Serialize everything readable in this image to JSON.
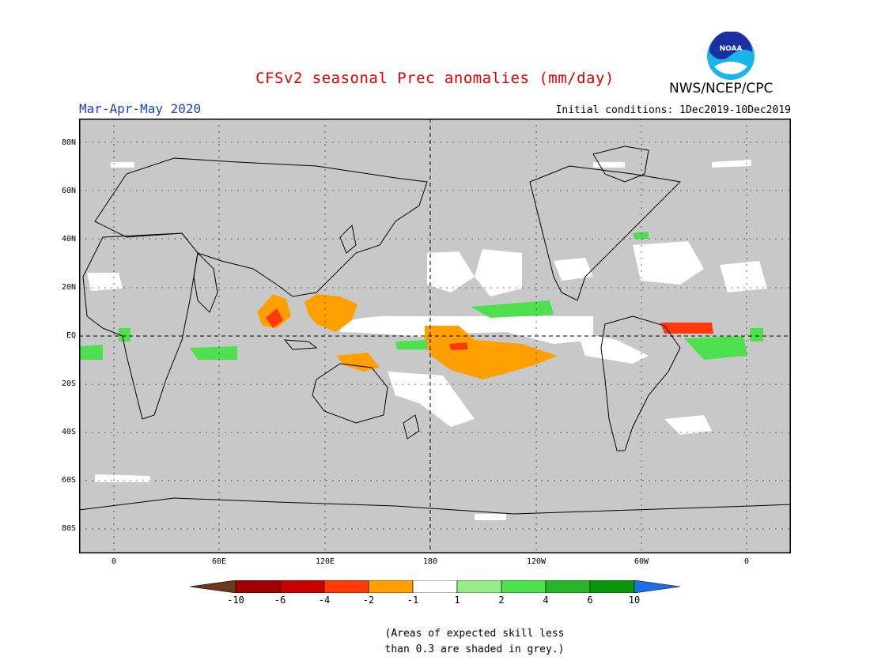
{
  "title": "CFSv2 seasonal Prec anomalies (mm/day)",
  "season": "Mar-Apr-May 2020",
  "initial_conditions": "Initial conditions: 1Dec2019-10Dec2019",
  "agency": "NWS/NCEP/CPC",
  "logo_text": "NOAA",
  "lat_labels": [
    "80N",
    "60N",
    "40N",
    "20N",
    "EQ",
    "20S",
    "40S",
    "60S",
    "80S"
  ],
  "lon_labels": [
    "0",
    "60E",
    "120E",
    "180",
    "120W",
    "60W",
    "0"
  ],
  "colorbar": {
    "labels": [
      "-10",
      "-6",
      "-4",
      "-2",
      "-1",
      "1",
      "2",
      "4",
      "6",
      "10"
    ],
    "colors": [
      "#6b3a1e",
      "#a00000",
      "#c80000",
      "#ff3a0a",
      "#ffa000",
      "#ffffff",
      "#98ec8a",
      "#4ee04e",
      "#28b428",
      "#0a960a",
      "#1e6ee8"
    ]
  },
  "note_line1": "(Areas of expected skill less",
  "note_line2": "than 0.3 are shaded in grey.)",
  "colors": {
    "skill_grey": "#c8c8c8",
    "title_red": "#e00000",
    "season_blue": "#1a40d0"
  }
}
